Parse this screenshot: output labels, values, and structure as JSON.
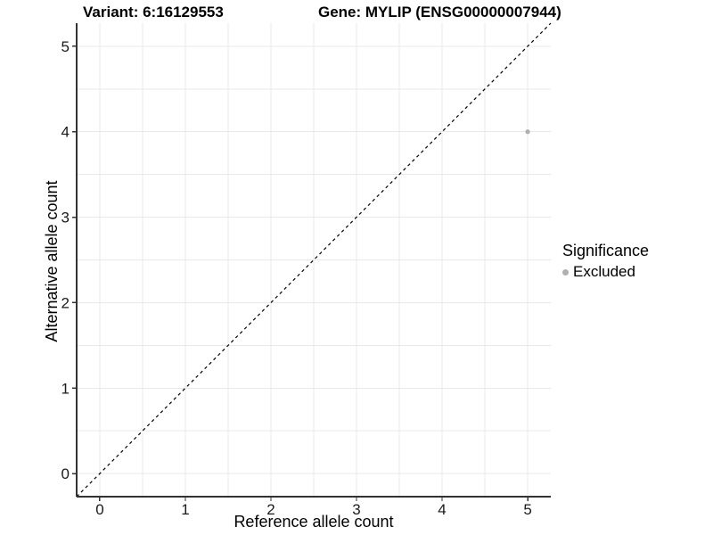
{
  "chart_data": {
    "type": "scatter",
    "title_variant": "Variant: 6:16129553",
    "title_gene": "Gene: MYLIP (ENSG00000007944)",
    "xlabel": "Reference allele count",
    "ylabel": "Alternative allele count",
    "xlim": [
      -0.27,
      5.27
    ],
    "ylim": [
      -0.27,
      5.27
    ],
    "x_ticks": [
      0,
      1,
      2,
      3,
      4,
      5
    ],
    "y_ticks": [
      0,
      1,
      2,
      3,
      4,
      5
    ],
    "grid": "on",
    "grid_interval": 0.5,
    "points": [
      {
        "x": 5,
        "y": 4,
        "series": "Excluded"
      }
    ],
    "identity_line": {
      "slope": 1,
      "intercept": 0,
      "style": "dashed"
    },
    "legend": {
      "title": "Significance",
      "position": "right",
      "items": [
        {
          "label": "Excluded",
          "color": "#b0b0b0"
        }
      ]
    },
    "colors": {
      "point": "#b0b0b0",
      "grid": "#e8e8e8",
      "axis": "#333333",
      "tick_text": "#1a1a1a",
      "dashed_line": "#000000",
      "background": "#ffffff"
    }
  }
}
